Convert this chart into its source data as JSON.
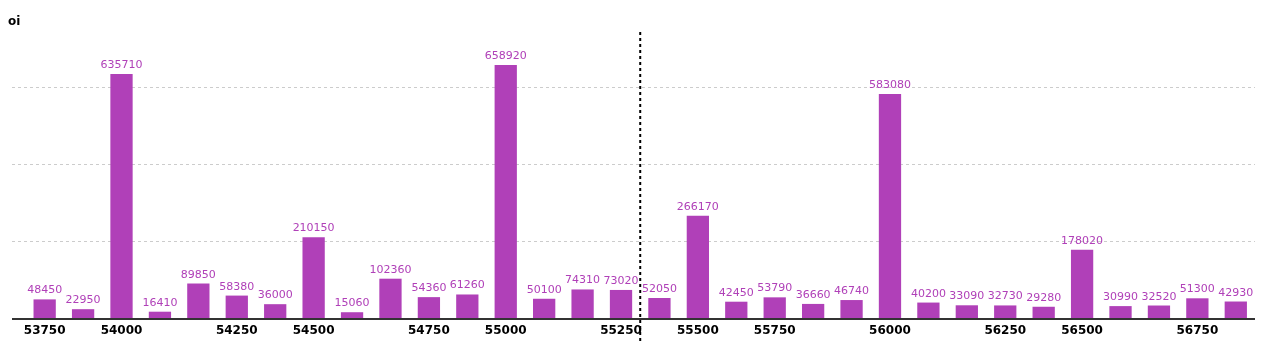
{
  "chart_data": {
    "type": "bar",
    "ylabel": "oi",
    "categories": [
      "53750",
      null,
      "54000",
      null,
      null,
      "54250",
      null,
      "54500",
      null,
      null,
      "54750",
      null,
      "55000",
      null,
      null,
      "55250",
      null,
      "55500",
      null,
      "55750",
      null,
      null,
      "56000",
      null,
      null,
      "56250",
      null,
      "56500",
      null,
      null,
      "56750",
      null
    ],
    "values": [
      48450,
      22950,
      635710,
      16410,
      89850,
      58380,
      36000,
      210150,
      15060,
      102360,
      54360,
      61260,
      658920,
      50100,
      74310,
      73020,
      52050,
      266170,
      42450,
      53790,
      36660,
      46740,
      583080,
      40200,
      33090,
      32730,
      29280,
      178020,
      30990,
      32520,
      51300,
      42930
    ],
    "color": "#b040b8",
    "data_labels": true,
    "ylim": [
      0,
      750000
    ],
    "yticks": [
      {
        "value": 0,
        "label": null
      },
      {
        "value": 200000,
        "label": null
      },
      {
        "value": 400000,
        "label": null
      },
      {
        "value": 600000,
        "label": null
      }
    ],
    "tick_labels": "x",
    "grid": "y"
  }
}
